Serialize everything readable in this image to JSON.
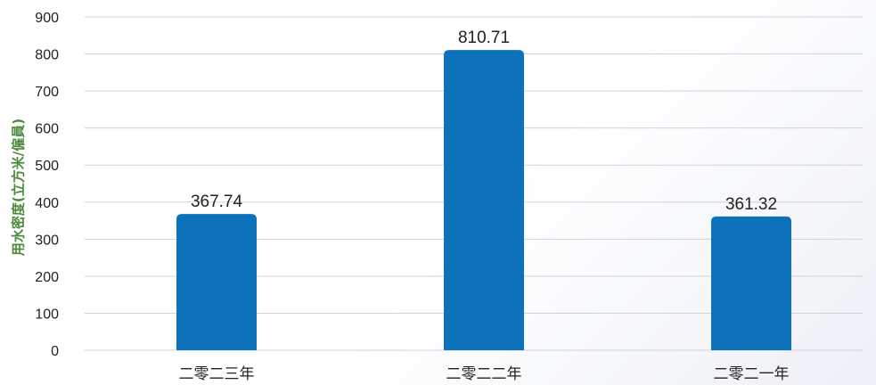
{
  "chart_data": {
    "type": "bar",
    "categories": [
      "二零二三年",
      "二零二二年",
      "二零二一年"
    ],
    "series": [
      {
        "values": [
          367.74,
          810.71,
          361.32
        ]
      }
    ],
    "data_labels": [
      "367.74",
      "810.71",
      "361.32"
    ],
    "title": "",
    "xlabel": "",
    "ylabel": "用水密度(立方米/僱員)",
    "ylim": [
      0,
      900
    ],
    "yticks": [
      0,
      100,
      200,
      300,
      400,
      500,
      600,
      700,
      800,
      900
    ],
    "grid": true,
    "legend": "none",
    "colors": {
      "bar": "#0d72b9",
      "grid": "#cfd3da",
      "tick_text": "#222222",
      "ylabel": "#4a8a3a"
    }
  }
}
